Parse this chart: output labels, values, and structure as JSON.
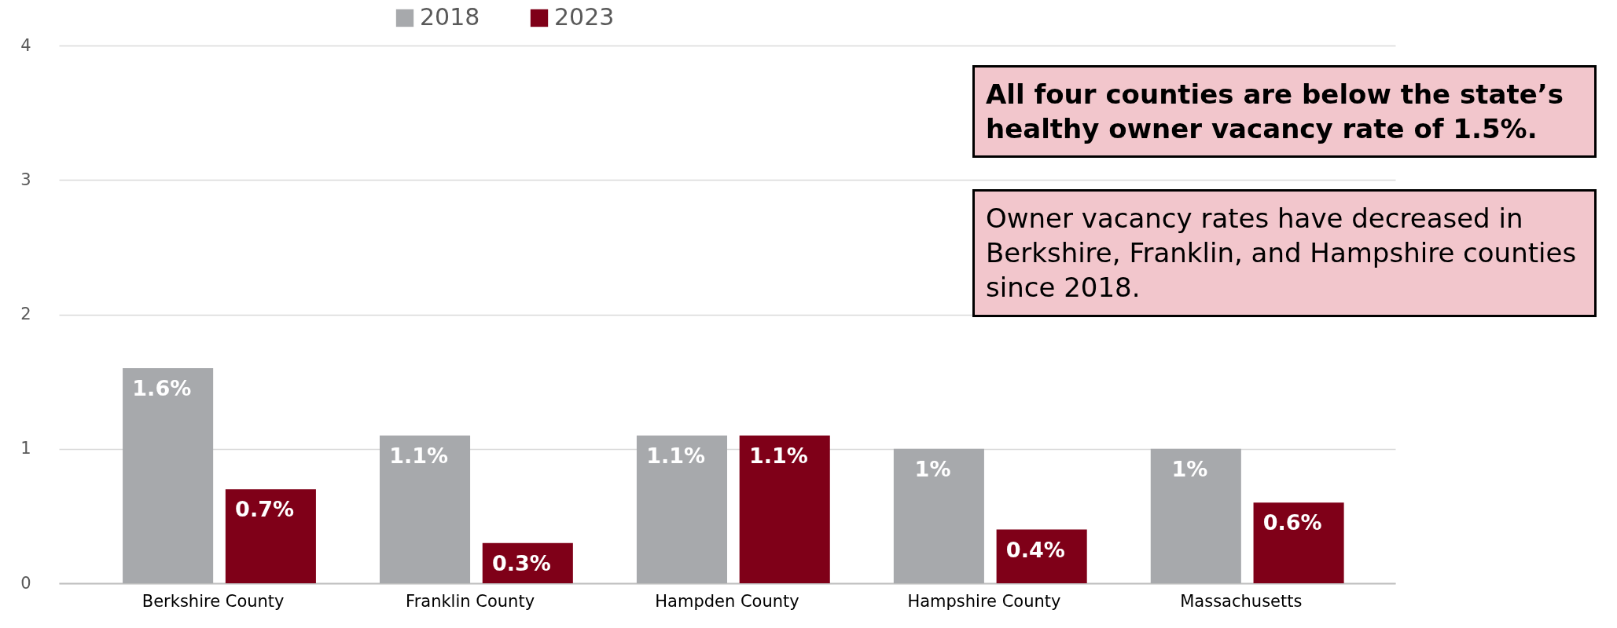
{
  "chart_data": {
    "type": "bar",
    "categories": [
      "Berkshire County",
      "Franklin County",
      "Hampden County",
      "Hampshire County",
      "Massachusetts"
    ],
    "series": [
      {
        "name": "2018",
        "color": "#a7a9ac",
        "values": [
          1.6,
          1.1,
          1.1,
          1.0,
          1.0
        ],
        "value_labels": [
          "1.6%",
          "1.1%",
          "1.1%",
          "1%",
          "1%"
        ]
      },
      {
        "name": "2023",
        "color": "#7f0018",
        "values": [
          0.7,
          0.3,
          1.1,
          0.4,
          0.6
        ],
        "value_labels": [
          "0.7%",
          "0.3%",
          "1.1%",
          "0.4%",
          "0.6%"
        ]
      }
    ],
    "ylim": [
      0,
      4
    ],
    "yticks": [
      0,
      1,
      2,
      3,
      4
    ],
    "grid": "y",
    "legend": "top",
    "annotations": [
      "All four counties are below the state’s healthy owner vacancy rate of 1.5%.",
      "Owner vacancy rates have decreased in Berkshire, Franklin, and Hampshire counties since 2018."
    ]
  }
}
